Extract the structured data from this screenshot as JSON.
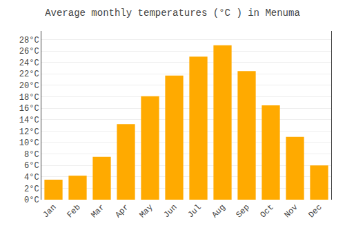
{
  "chart_data": {
    "type": "bar",
    "title": "Average monthly temperatures (°C ) in Menuma",
    "categories": [
      "Jan",
      "Feb",
      "Mar",
      "Apr",
      "May",
      "Jun",
      "Jul",
      "Aug",
      "Sep",
      "Oct",
      "Nov",
      "Dec"
    ],
    "values": [
      3.5,
      4.2,
      7.5,
      13.2,
      18.1,
      21.7,
      25.0,
      27.0,
      22.5,
      16.5,
      11.0,
      6.0
    ],
    "color": "#FFAA00",
    "ylim": [
      0,
      29.5
    ],
    "yticks": [
      {
        "value": 0,
        "label": "0°C"
      },
      {
        "value": 2,
        "label": "2°C"
      },
      {
        "value": 4,
        "label": "4°C"
      },
      {
        "value": 6,
        "label": "6°C"
      },
      {
        "value": 8,
        "label": "8°C"
      },
      {
        "value": 10,
        "label": "10°C"
      },
      {
        "value": 12,
        "label": "12°C"
      },
      {
        "value": 14,
        "label": "14°C"
      },
      {
        "value": 16,
        "label": "16°C"
      },
      {
        "value": 18,
        "label": "18°C"
      },
      {
        "value": 20,
        "label": "20°C"
      },
      {
        "value": 22,
        "label": "22°C"
      },
      {
        "value": 24,
        "label": "24°C"
      },
      {
        "value": 26,
        "label": "26°C"
      },
      {
        "value": 28,
        "label": "28°C"
      }
    ],
    "grid": true
  }
}
